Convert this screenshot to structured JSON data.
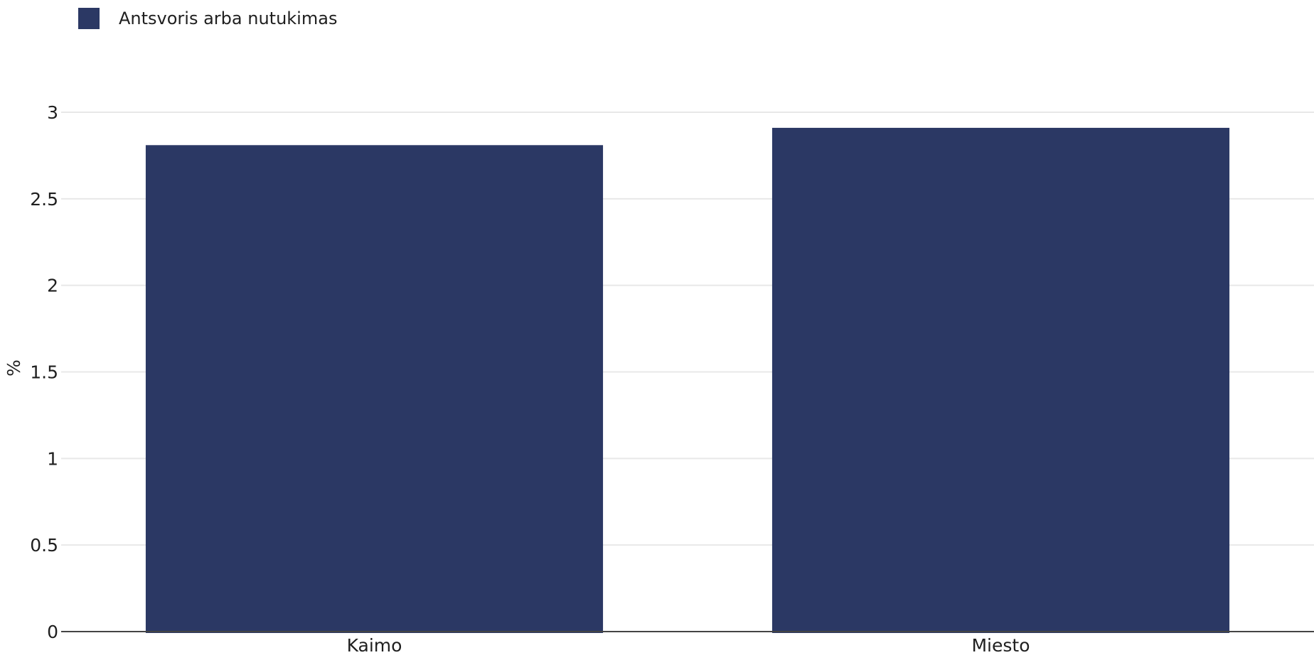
{
  "legend": {
    "label": "Antsvoris arba nutukimas",
    "color": "#2b3864"
  },
  "chart_data": {
    "type": "bar",
    "categories": [
      "Kaimo",
      "Miesto"
    ],
    "series": [
      {
        "name": "Antsvoris arba nutukimas",
        "color": "#2b3864",
        "values": [
          2.81,
          2.91
        ]
      }
    ],
    "ylabel": "%",
    "xlabel": "",
    "ylim": [
      0,
      3
    ],
    "yticks": [
      "0",
      "0.5",
      "1",
      "1.5",
      "2",
      "2.5",
      "3"
    ],
    "grid": true,
    "legend_position": "top-left"
  }
}
